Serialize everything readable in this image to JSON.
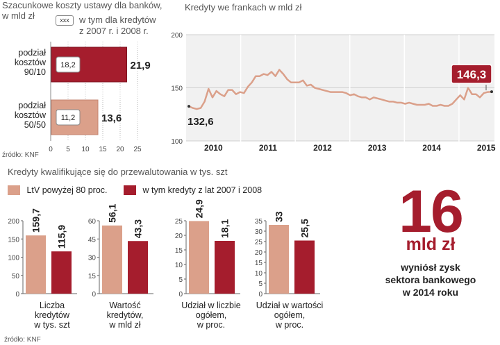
{
  "colors": {
    "dark_red": "#a51d2d",
    "salmon": "#dba08a",
    "line_bg": "#f1f1f1",
    "grid": "#cccccc"
  },
  "costs": {
    "title_line1": "Szacunkowe koszty ustawy dla banków,",
    "title_line2": "w mld zł",
    "legend_box": "xxx",
    "legend_text_line1": "w tym dla kredytów",
    "legend_text_line2": "z 2007 r. i 2008 r.",
    "source": "źródło: KNF",
    "chart_data": {
      "type": "bar",
      "orientation": "horizontal",
      "categories": [
        [
          "podział",
          "kosztów",
          "90/10"
        ],
        [
          "podział",
          "kosztów",
          "50/50"
        ]
      ],
      "values": [
        21.9,
        13.6
      ],
      "inner_values": [
        18.2,
        11.2
      ],
      "value_labels": [
        "21,9",
        "13,6"
      ],
      "inner_labels": [
        "18,2",
        "11,2"
      ],
      "xlim": [
        0,
        25
      ],
      "ticks": [
        "0",
        "5",
        "10",
        "15",
        "20",
        "25"
      ]
    }
  },
  "frank": {
    "title": "Kredyty we frankach w mld zł",
    "start_label": "132,6",
    "end_label": "146,3",
    "chart_data": {
      "type": "line",
      "title": "Kredyty we frankach w mld zł",
      "ylim": [
        100,
        200
      ],
      "yticks": [
        "100",
        "150",
        "200"
      ],
      "year_labels": [
        "2010",
        "2011",
        "2012",
        "2013",
        "2014",
        "2015"
      ],
      "values": [
        132.6,
        131,
        130,
        131,
        137,
        149,
        141,
        147,
        144,
        142,
        148,
        148,
        144,
        146,
        145,
        151,
        155,
        161,
        161,
        163,
        162,
        165,
        161,
        167,
        163,
        158,
        155,
        155,
        155,
        157,
        152,
        153,
        150,
        149,
        148,
        147,
        146,
        146,
        146,
        146,
        145,
        143,
        144,
        142,
        141,
        141,
        139,
        141,
        140,
        139,
        138,
        137,
        137,
        136,
        136,
        135,
        136,
        135,
        134,
        134,
        134,
        135,
        133,
        133,
        134,
        133,
        133,
        135,
        139,
        143,
        139,
        150,
        144,
        144,
        141,
        145,
        146,
        146.3
      ]
    }
  },
  "qualify": {
    "title": "Kredyty kwalifikujące się do przewalutowania w tys. szt",
    "legend_a": "LtV powyżej 80 proc.",
    "legend_b": "w tym kredyty z lat 2007 i 2008",
    "source": "źródło: KNF",
    "chart_data": [
      {
        "type": "bar",
        "series": [
          "LtV powyżej 80 proc.",
          "w tym kredyty z lat 2007 i 2008"
        ],
        "values": [
          159.7,
          115.9
        ],
        "value_labels": [
          "159,7",
          "115,9"
        ],
        "ylim": [
          0,
          200
        ],
        "yticks": [
          "0",
          "50",
          "100",
          "150",
          "200"
        ],
        "label": [
          "Liczba",
          "kredytów",
          "w tys. szt"
        ]
      },
      {
        "type": "bar",
        "series": [
          "LtV powyżej 80 proc.",
          "w tym kredyty z lat 2007 i 2008"
        ],
        "values": [
          56.1,
          43.3
        ],
        "value_labels": [
          "56,1",
          "43,3"
        ],
        "ylim": [
          0,
          60
        ],
        "yticks": [
          "0",
          "15",
          "30",
          "45",
          "60"
        ],
        "label": [
          "Wartość",
          "kredytów,",
          "w mld zł"
        ]
      },
      {
        "type": "bar",
        "series": [
          "LtV powyżej 80 proc.",
          "w tym kredyty z lat 2007 i 2008"
        ],
        "values": [
          24.9,
          18.1
        ],
        "value_labels": [
          "24,9",
          "18,1"
        ],
        "ylim": [
          0,
          25
        ],
        "yticks": [
          "0",
          "5",
          "10",
          "15",
          "20",
          "25"
        ],
        "label": [
          "Udział w liczbie",
          "ogółem,",
          "w proc."
        ]
      },
      {
        "type": "bar",
        "series": [
          "LtV powyżej 80 proc.",
          "w tym kredyty z lat 2007 i 2008"
        ],
        "values": [
          33,
          25.5
        ],
        "value_labels": [
          "33",
          "25,5"
        ],
        "ylim": [
          0,
          35
        ],
        "yticks": [
          "0",
          "5",
          "10",
          "15",
          "20",
          "25",
          "30",
          "35"
        ],
        "label": [
          "Udział w wartości",
          "ogółem,",
          "w proc."
        ]
      }
    ]
  },
  "kpi": {
    "number": "16",
    "unit": "mld zł",
    "text_line1": "wyniósł zysk",
    "text_line2": "sektora bankowego",
    "text_line3": "w 2014 roku"
  }
}
